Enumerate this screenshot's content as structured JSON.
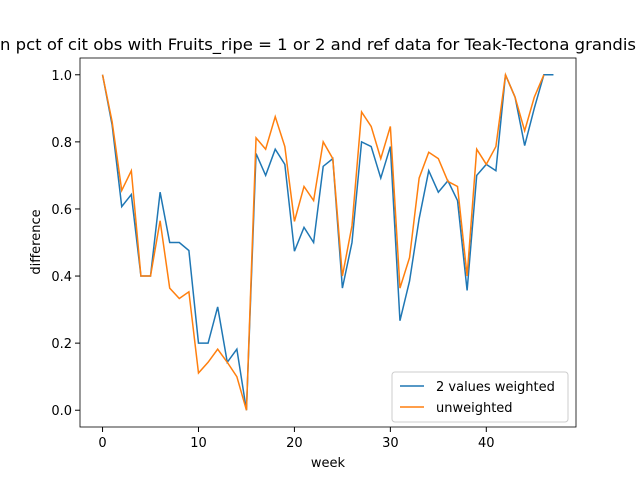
{
  "chart_data": {
    "type": "line",
    "title": "n pct of cit obs with Fruits_ripe = 1 or 2 and ref data for Teak-Tectona grandis",
    "xlabel": "week",
    "ylabel": "difference",
    "x": [
      0,
      1,
      2,
      3,
      4,
      5,
      6,
      7,
      8,
      9,
      10,
      11,
      12,
      13,
      14,
      15,
      16,
      17,
      18,
      19,
      20,
      21,
      22,
      23,
      24,
      25,
      26,
      27,
      28,
      29,
      30,
      31,
      32,
      33,
      34,
      35,
      36,
      37,
      38,
      39,
      40,
      41,
      42,
      43,
      44,
      45,
      46,
      47
    ],
    "series": [
      {
        "name": "2 values weighted",
        "color": "#1f77b4",
        "values": [
          1.0,
          0.85,
          0.607,
          0.643,
          0.4,
          0.4,
          0.65,
          0.5,
          0.5,
          0.476,
          0.2,
          0.2,
          0.308,
          0.143,
          0.182,
          0.0,
          0.765,
          0.7,
          0.778,
          0.733,
          0.474,
          0.545,
          0.5,
          0.727,
          0.75,
          0.364,
          0.5,
          0.8,
          0.786,
          0.692,
          0.786,
          0.267,
          0.385,
          0.571,
          0.714,
          0.65,
          0.684,
          0.625,
          0.357,
          0.7,
          0.733,
          0.714,
          1.0,
          0.933,
          0.789,
          0.9,
          1.0,
          1.0
        ]
      },
      {
        "name": "unweighted",
        "color": "#ff7f0e",
        "values": [
          1.0,
          0.86,
          0.655,
          0.714,
          0.4,
          0.4,
          0.565,
          0.364,
          0.333,
          0.353,
          0.111,
          0.143,
          0.182,
          0.143,
          0.1,
          0.0,
          0.812,
          0.778,
          0.875,
          0.786,
          0.563,
          0.667,
          0.625,
          0.8,
          0.75,
          0.4,
          0.55,
          0.889,
          0.846,
          0.75,
          0.846,
          0.364,
          0.455,
          0.692,
          0.769,
          0.75,
          0.682,
          0.667,
          0.4,
          0.778,
          0.733,
          0.786,
          1.0,
          0.933,
          0.833,
          0.933,
          1.0,
          null
        ]
      }
    ],
    "xlim": [
      -2.35,
      49.35
    ],
    "ylim": [
      -0.05,
      1.05
    ],
    "xticks": [
      0,
      10,
      20,
      30,
      40
    ],
    "yticks": [
      {
        "value": 0,
        "label": "0.0"
      },
      {
        "value": 0.2,
        "label": "0.2"
      },
      {
        "value": 0.4,
        "label": "0.4"
      },
      {
        "value": 0.6,
        "label": "0.6"
      },
      {
        "value": 0.8,
        "label": "0.8"
      },
      {
        "value": 1.0,
        "label": "1.0"
      }
    ],
    "legend": "lower right"
  }
}
